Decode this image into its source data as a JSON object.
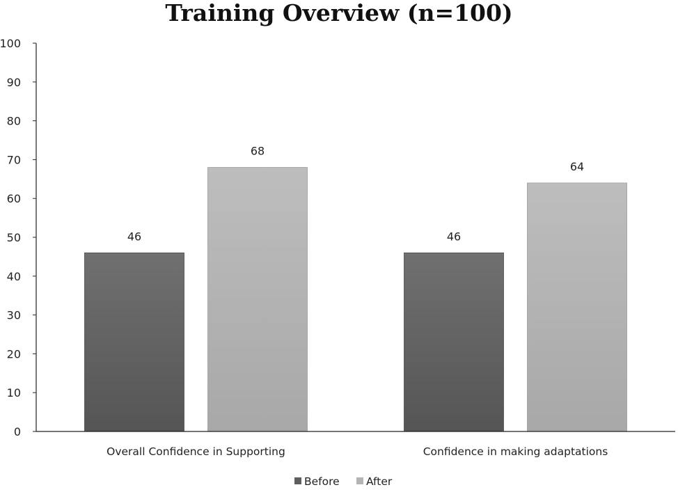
{
  "chart_data": {
    "type": "bar",
    "title": "Training Overview (n=100)",
    "categories": [
      "Overall Confidence in Supporting",
      "Confidence in making adaptations"
    ],
    "series": [
      {
        "name": "Before",
        "values": [
          46,
          46
        ],
        "color": "#5e5e5e"
      },
      {
        "name": "After",
        "values": [
          68,
          64
        ],
        "color": "#b4b4b4"
      }
    ],
    "ylim": [
      0,
      100
    ],
    "yticks": [
      0,
      10,
      20,
      30,
      40,
      50,
      60,
      70,
      80,
      90,
      100
    ],
    "grid": false,
    "legend": "bottom-center",
    "data_labels": true
  }
}
